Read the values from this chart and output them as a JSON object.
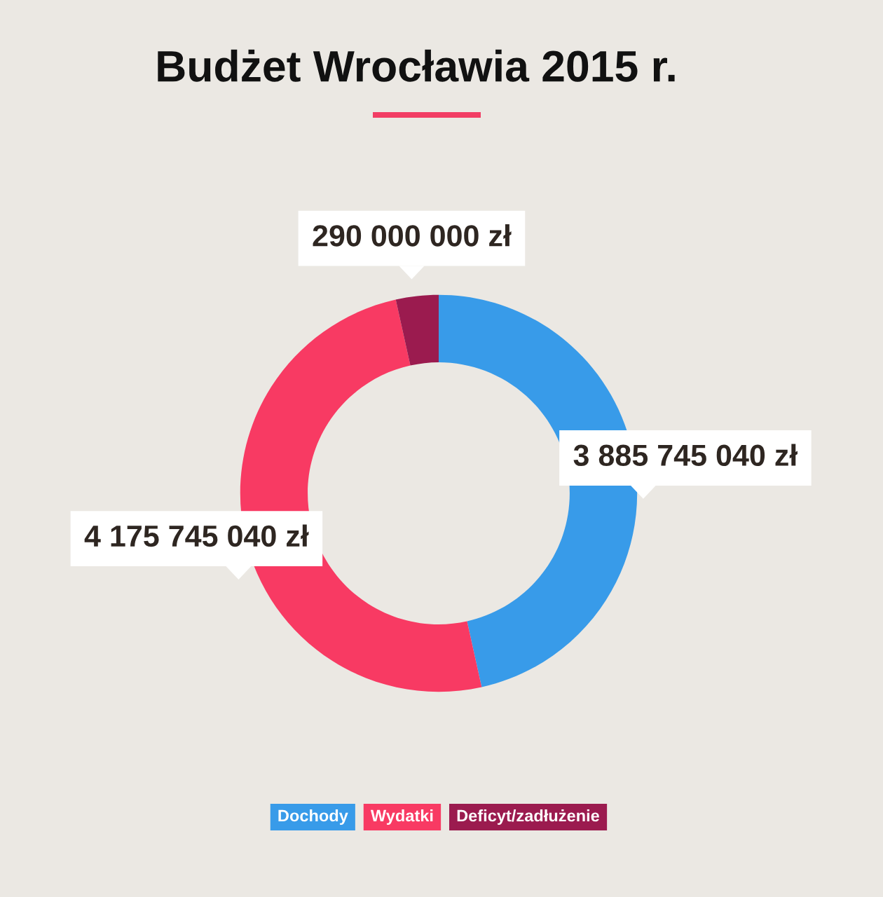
{
  "chart_data": {
    "type": "donut",
    "title": "Budżet Wrocławia 2015 r.",
    "categories": [
      "Dochody",
      "Wydatki",
      "Deficyt/zadłużenie"
    ],
    "values": [
      3885745040,
      4175745040,
      290000000
    ],
    "colors": [
      "#389be9",
      "#f83a63",
      "#9b1b4f"
    ],
    "value_labels": [
      "3 885 745 040 zł",
      "4 175 745 040 zł",
      "290 000 000 zł"
    ],
    "legend": "bottom"
  }
}
